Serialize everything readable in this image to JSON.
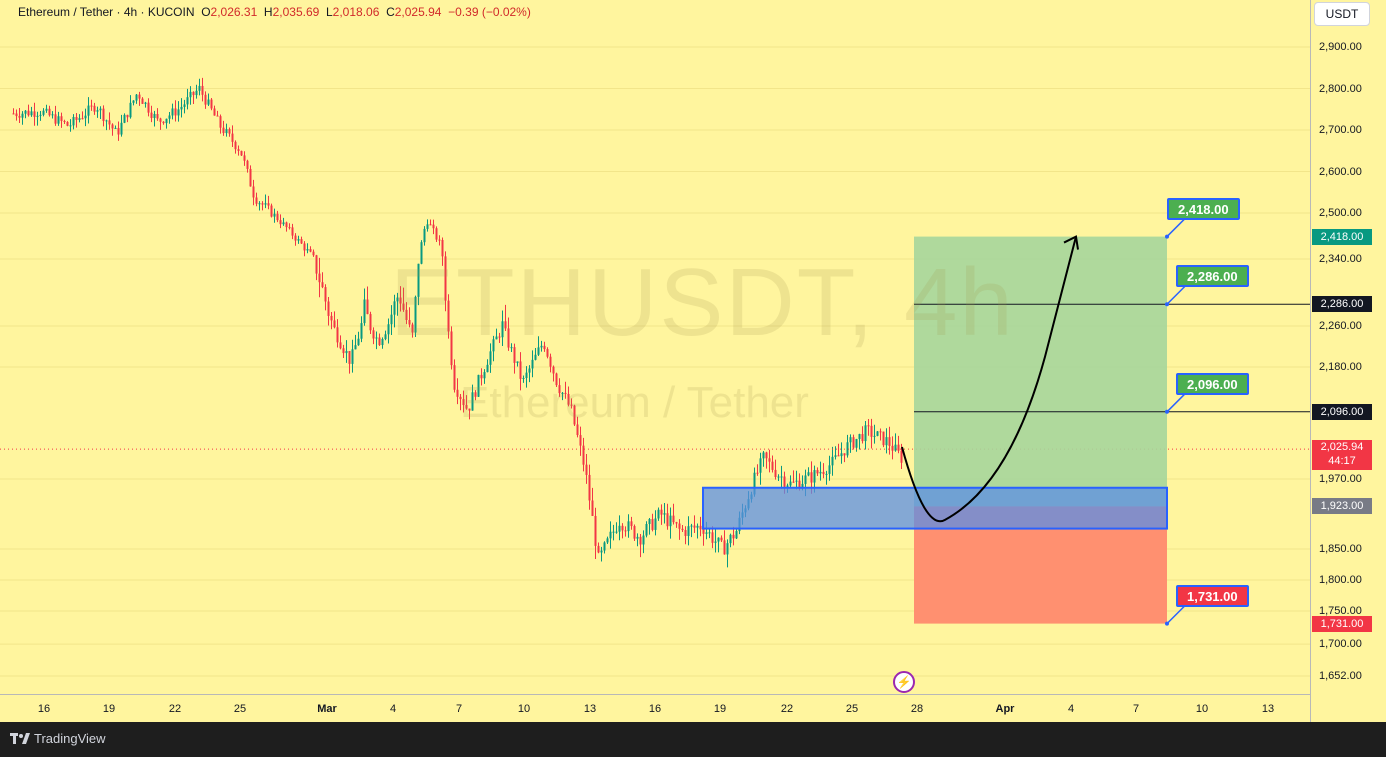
{
  "header": {
    "symbol_desc": "Ethereum / Tether · 4h · KUCOIN",
    "open_label": "O",
    "open": "2,026.31",
    "high_label": "H",
    "high": "2,035.69",
    "low_label": "L",
    "low": "2,018.06",
    "close_label": "C",
    "close": "2,025.94",
    "change": "−0.39 (−0.02%)"
  },
  "currency": "USDT",
  "watermark": {
    "symbol": "ETHUSDT, 4h",
    "name": "Ethereum / Tether"
  },
  "footer": {
    "brand": "TradingView"
  },
  "colors": {
    "background": "#fff59e",
    "bull": "#089981",
    "bear": "#f23645",
    "target_zone": "#a6d69b",
    "stop_zone": "#ff8a6e",
    "entry_box": "#5b8ee6",
    "accent": "#2962ff"
  },
  "chart_data": {
    "type": "candlestick",
    "title": "Ethereum / Tether · 4h · KUCOIN",
    "ylim": [
      1652,
      2900
    ],
    "price_ticks": [
      "2,900.00",
      "2,800.00",
      "2,700.00",
      "2,600.00",
      "2,500.00",
      "2,340.00",
      "2,260.00",
      "2,180.00",
      "1,970.00",
      "1,850.00",
      "1,800.00",
      "1,750.00",
      "1,700.00",
      "1,652.00"
    ],
    "time_ticks": [
      "16",
      "19",
      "22",
      "25",
      "Mar",
      "4",
      "7",
      "10",
      "13",
      "16",
      "19",
      "22",
      "25",
      "28",
      "Apr",
      "4",
      "7",
      "10",
      "13"
    ],
    "bold_time_ticks": [
      "Mar",
      "Apr"
    ],
    "path_points": [
      [
        0,
        2740
      ],
      [
        4,
        2745
      ],
      [
        8,
        2710
      ],
      [
        12,
        2760
      ],
      [
        15,
        2690
      ],
      [
        18,
        2790
      ],
      [
        21,
        2720
      ],
      [
        24,
        2750
      ],
      [
        27,
        2800
      ],
      [
        30,
        2710
      ],
      [
        33,
        2650
      ],
      [
        35,
        2540
      ],
      [
        38,
        2490
      ],
      [
        40,
        2440
      ],
      [
        43,
        2360
      ],
      [
        46,
        2270
      ],
      [
        49,
        2190
      ],
      [
        51,
        2280
      ],
      [
        53,
        2230
      ],
      [
        56,
        2300
      ],
      [
        58,
        2240
      ],
      [
        60,
        2480
      ],
      [
        62,
        2390
      ],
      [
        64,
        2150
      ],
      [
        66,
        2100
      ],
      [
        69,
        2200
      ],
      [
        71,
        2260
      ],
      [
        74,
        2150
      ],
      [
        77,
        2230
      ],
      [
        79,
        2150
      ],
      [
        81,
        2100
      ],
      [
        83,
        1990
      ],
      [
        85,
        1830
      ],
      [
        88,
        1900
      ],
      [
        91,
        1870
      ],
      [
        94,
        1910
      ],
      [
        97,
        1880
      ],
      [
        100,
        1890
      ],
      [
        103,
        1850
      ],
      [
        105,
        1880
      ],
      [
        107,
        1950
      ],
      [
        109,
        2010
      ],
      [
        111,
        1980
      ],
      [
        113,
        1960
      ],
      [
        116,
        1975
      ],
      [
        119,
        2000
      ],
      [
        121,
        2030
      ],
      [
        124,
        2060
      ],
      [
        127,
        2040
      ],
      [
        129,
        2010
      ]
    ],
    "current_price": "2,025.94",
    "countdown": "44:17",
    "price_labels": [
      {
        "price": 2418,
        "text": "2,418.00",
        "color": "#089981"
      },
      {
        "price": 2286,
        "text": "2,286.00",
        "color": "#131722"
      },
      {
        "price": 2096,
        "text": "2,096.00",
        "color": "#131722"
      },
      {
        "price": 1923,
        "text": "1,923.00",
        "color": "#787b86"
      },
      {
        "price": 1731,
        "text": "1,731.00",
        "color": "#f23645"
      }
    ],
    "callouts": [
      {
        "price": 2418,
        "text": "2,418.00",
        "color": "#4caf50"
      },
      {
        "price": 2286,
        "text": "2,286.00",
        "color": "#4caf50"
      },
      {
        "price": 2096,
        "text": "2,096.00",
        "color": "#4caf50"
      },
      {
        "price": 1731,
        "text": "1,731.00",
        "color": "#f23645"
      }
    ],
    "position": {
      "entry": 1923,
      "target": 2418,
      "stop": 1731
    },
    "demand_zone": {
      "top": 1955,
      "bottom": 1885
    },
    "horizontal_lines": [
      2286,
      2096
    ]
  }
}
